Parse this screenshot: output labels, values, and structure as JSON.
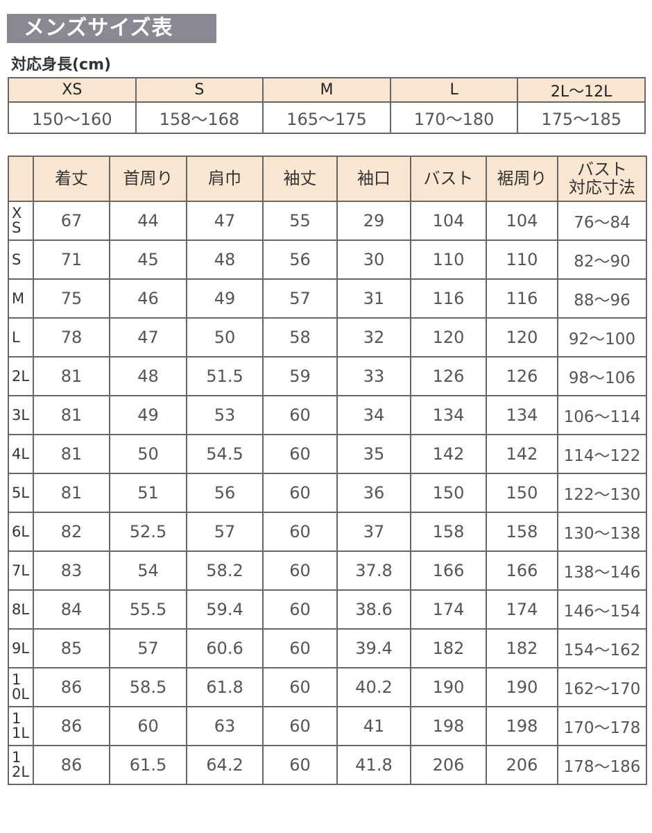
{
  "title": "メンズサイズ表",
  "height_table": {
    "caption": "対応身長(cm)",
    "sizes": [
      "XS",
      "S",
      "M",
      "L",
      "2L〜12L"
    ],
    "heights": [
      "150〜160",
      "158〜168",
      "165〜175",
      "170〜180",
      "175〜185"
    ]
  },
  "size_table": {
    "headers": [
      "",
      "着丈",
      "首周り",
      "肩巾",
      "袖丈",
      "袖口",
      "バスト",
      "裾周り",
      "バスト\n対応寸法"
    ],
    "rows": [
      [
        "XS",
        "67",
        "44",
        "47",
        "55",
        "29",
        "104",
        "104",
        "76〜84"
      ],
      [
        "S",
        "71",
        "45",
        "48",
        "56",
        "30",
        "110",
        "110",
        "82〜90"
      ],
      [
        "M",
        "75",
        "46",
        "49",
        "57",
        "31",
        "116",
        "116",
        "88〜96"
      ],
      [
        "L",
        "78",
        "47",
        "50",
        "58",
        "32",
        "120",
        "120",
        "92〜100"
      ],
      [
        "2L",
        "81",
        "48",
        "51.5",
        "59",
        "33",
        "126",
        "126",
        "98〜106"
      ],
      [
        "3L",
        "81",
        "49",
        "53",
        "60",
        "34",
        "134",
        "134",
        "106〜114"
      ],
      [
        "4L",
        "81",
        "50",
        "54.5",
        "60",
        "35",
        "142",
        "142",
        "114〜122"
      ],
      [
        "5L",
        "81",
        "51",
        "56",
        "60",
        "36",
        "150",
        "150",
        "122〜130"
      ],
      [
        "6L",
        "82",
        "52.5",
        "57",
        "60",
        "37",
        "158",
        "158",
        "130〜138"
      ],
      [
        "7L",
        "83",
        "54",
        "58.2",
        "60",
        "37.8",
        "166",
        "166",
        "138〜146"
      ],
      [
        "8L",
        "84",
        "55.5",
        "59.4",
        "60",
        "38.6",
        "174",
        "174",
        "146〜154"
      ],
      [
        "9L",
        "85",
        "57",
        "60.6",
        "60",
        "39.4",
        "182",
        "182",
        "154〜162"
      ],
      [
        "10L",
        "86",
        "58.5",
        "61.8",
        "60",
        "40.2",
        "190",
        "190",
        "162〜170"
      ],
      [
        "11L",
        "86",
        "60",
        "63",
        "60",
        "41",
        "198",
        "198",
        "170〜178"
      ],
      [
        "12L",
        "86",
        "61.5",
        "64.2",
        "60",
        "41.8",
        "206",
        "206",
        "178〜186"
      ]
    ]
  }
}
